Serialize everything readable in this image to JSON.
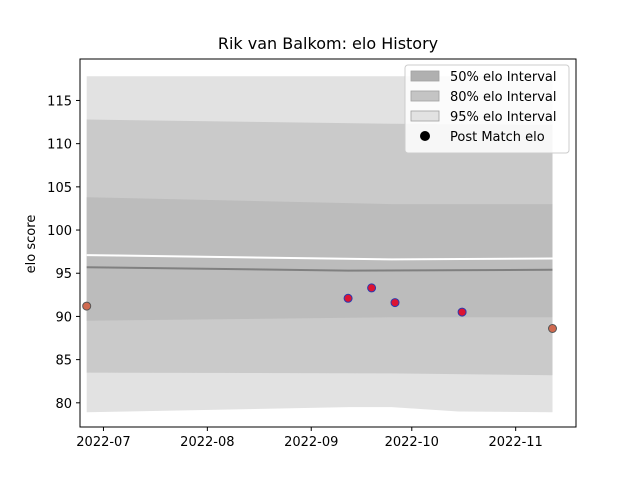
{
  "chart_data": {
    "type": "line",
    "title": "Rik van Balkom: elo History",
    "xlabel": "",
    "ylabel": "elo score",
    "x_axis": {
      "min": "2022-06-24",
      "max": "2022-11-19",
      "ticks": [
        "2022-07-01",
        "2022-08-01",
        "2022-09-01",
        "2022-10-01",
        "2022-11-01"
      ],
      "tick_labels": [
        "2022-07",
        "2022-08",
        "2022-09",
        "2022-10",
        "2022-11"
      ]
    },
    "y_axis": {
      "min": 77.2,
      "max": 119.8,
      "ticks": [
        80,
        85,
        90,
        95,
        100,
        105,
        110,
        115
      ],
      "tick_labels": [
        "80",
        "85",
        "90",
        "95",
        "100",
        "105",
        "110",
        "115"
      ]
    },
    "grid": false,
    "legend_position": "top-right",
    "legend": [
      {
        "label": "50% elo Interval",
        "kind": "patch",
        "color": "#b0b0b0"
      },
      {
        "label": "80% elo Interval",
        "kind": "patch",
        "color": "#c4c4c4"
      },
      {
        "label": "95% elo Interval",
        "kind": "patch",
        "color": "#e2e2e2"
      },
      {
        "label": "Post Match elo",
        "kind": "marker",
        "color": "#000000"
      }
    ],
    "mean_line": {
      "color": "#808080",
      "points": [
        {
          "x": "2022-06-26",
          "y": 95.7
        },
        {
          "x": "2022-09-12",
          "y": 95.3
        },
        {
          "x": "2022-11-12",
          "y": 95.4
        }
      ]
    },
    "bands": [
      {
        "name": "95%",
        "color": "#e2e2e2",
        "points": [
          {
            "x": "2022-06-26",
            "lo": 78.9,
            "hi": 117.8
          },
          {
            "x": "2022-09-12",
            "lo": 79.5,
            "hi": 117.8
          },
          {
            "x": "2022-09-25",
            "lo": 79.5,
            "hi": 117.8
          },
          {
            "x": "2022-10-15",
            "lo": 79.0,
            "hi": 117.8
          },
          {
            "x": "2022-11-12",
            "lo": 78.9,
            "hi": 117.8
          }
        ]
      },
      {
        "name": "80%",
        "color": "#cacaca",
        "points": [
          {
            "x": "2022-06-26",
            "lo": 83.5,
            "hi": 112.8
          },
          {
            "x": "2022-09-25",
            "lo": 83.4,
            "hi": 112.3
          },
          {
            "x": "2022-11-12",
            "lo": 83.2,
            "hi": 112.2
          }
        ]
      },
      {
        "name": "50%",
        "color": "#bcbcbc",
        "points": [
          {
            "x": "2022-06-26",
            "lo": 89.5,
            "hi": 103.8
          },
          {
            "x": "2022-09-25",
            "lo": 89.9,
            "hi": 103.0
          },
          {
            "x": "2022-11-12",
            "lo": 89.9,
            "hi": 103.0
          }
        ]
      }
    ],
    "gap": {
      "color": "#ffffff",
      "points": [
        {
          "x": "2022-06-26",
          "y": 97.1
        },
        {
          "x": "2022-09-25",
          "y": 96.6
        },
        {
          "x": "2022-11-12",
          "y": 96.7
        }
      ]
    },
    "series": [
      {
        "name": "Post Match elo",
        "marker_face": "#dc1432",
        "marker_edge": "#2a3ab0",
        "endpoint_face": "#d06a50",
        "endpoint_edge": "#555555",
        "points": [
          {
            "x": "2022-06-26",
            "y": 91.2,
            "endpoint": true
          },
          {
            "x": "2022-09-12",
            "y": 92.1
          },
          {
            "x": "2022-09-19",
            "y": 93.3
          },
          {
            "x": "2022-09-26",
            "y": 91.6
          },
          {
            "x": "2022-10-16",
            "y": 90.5
          },
          {
            "x": "2022-11-12",
            "y": 88.6,
            "endpoint": true
          }
        ]
      }
    ]
  }
}
